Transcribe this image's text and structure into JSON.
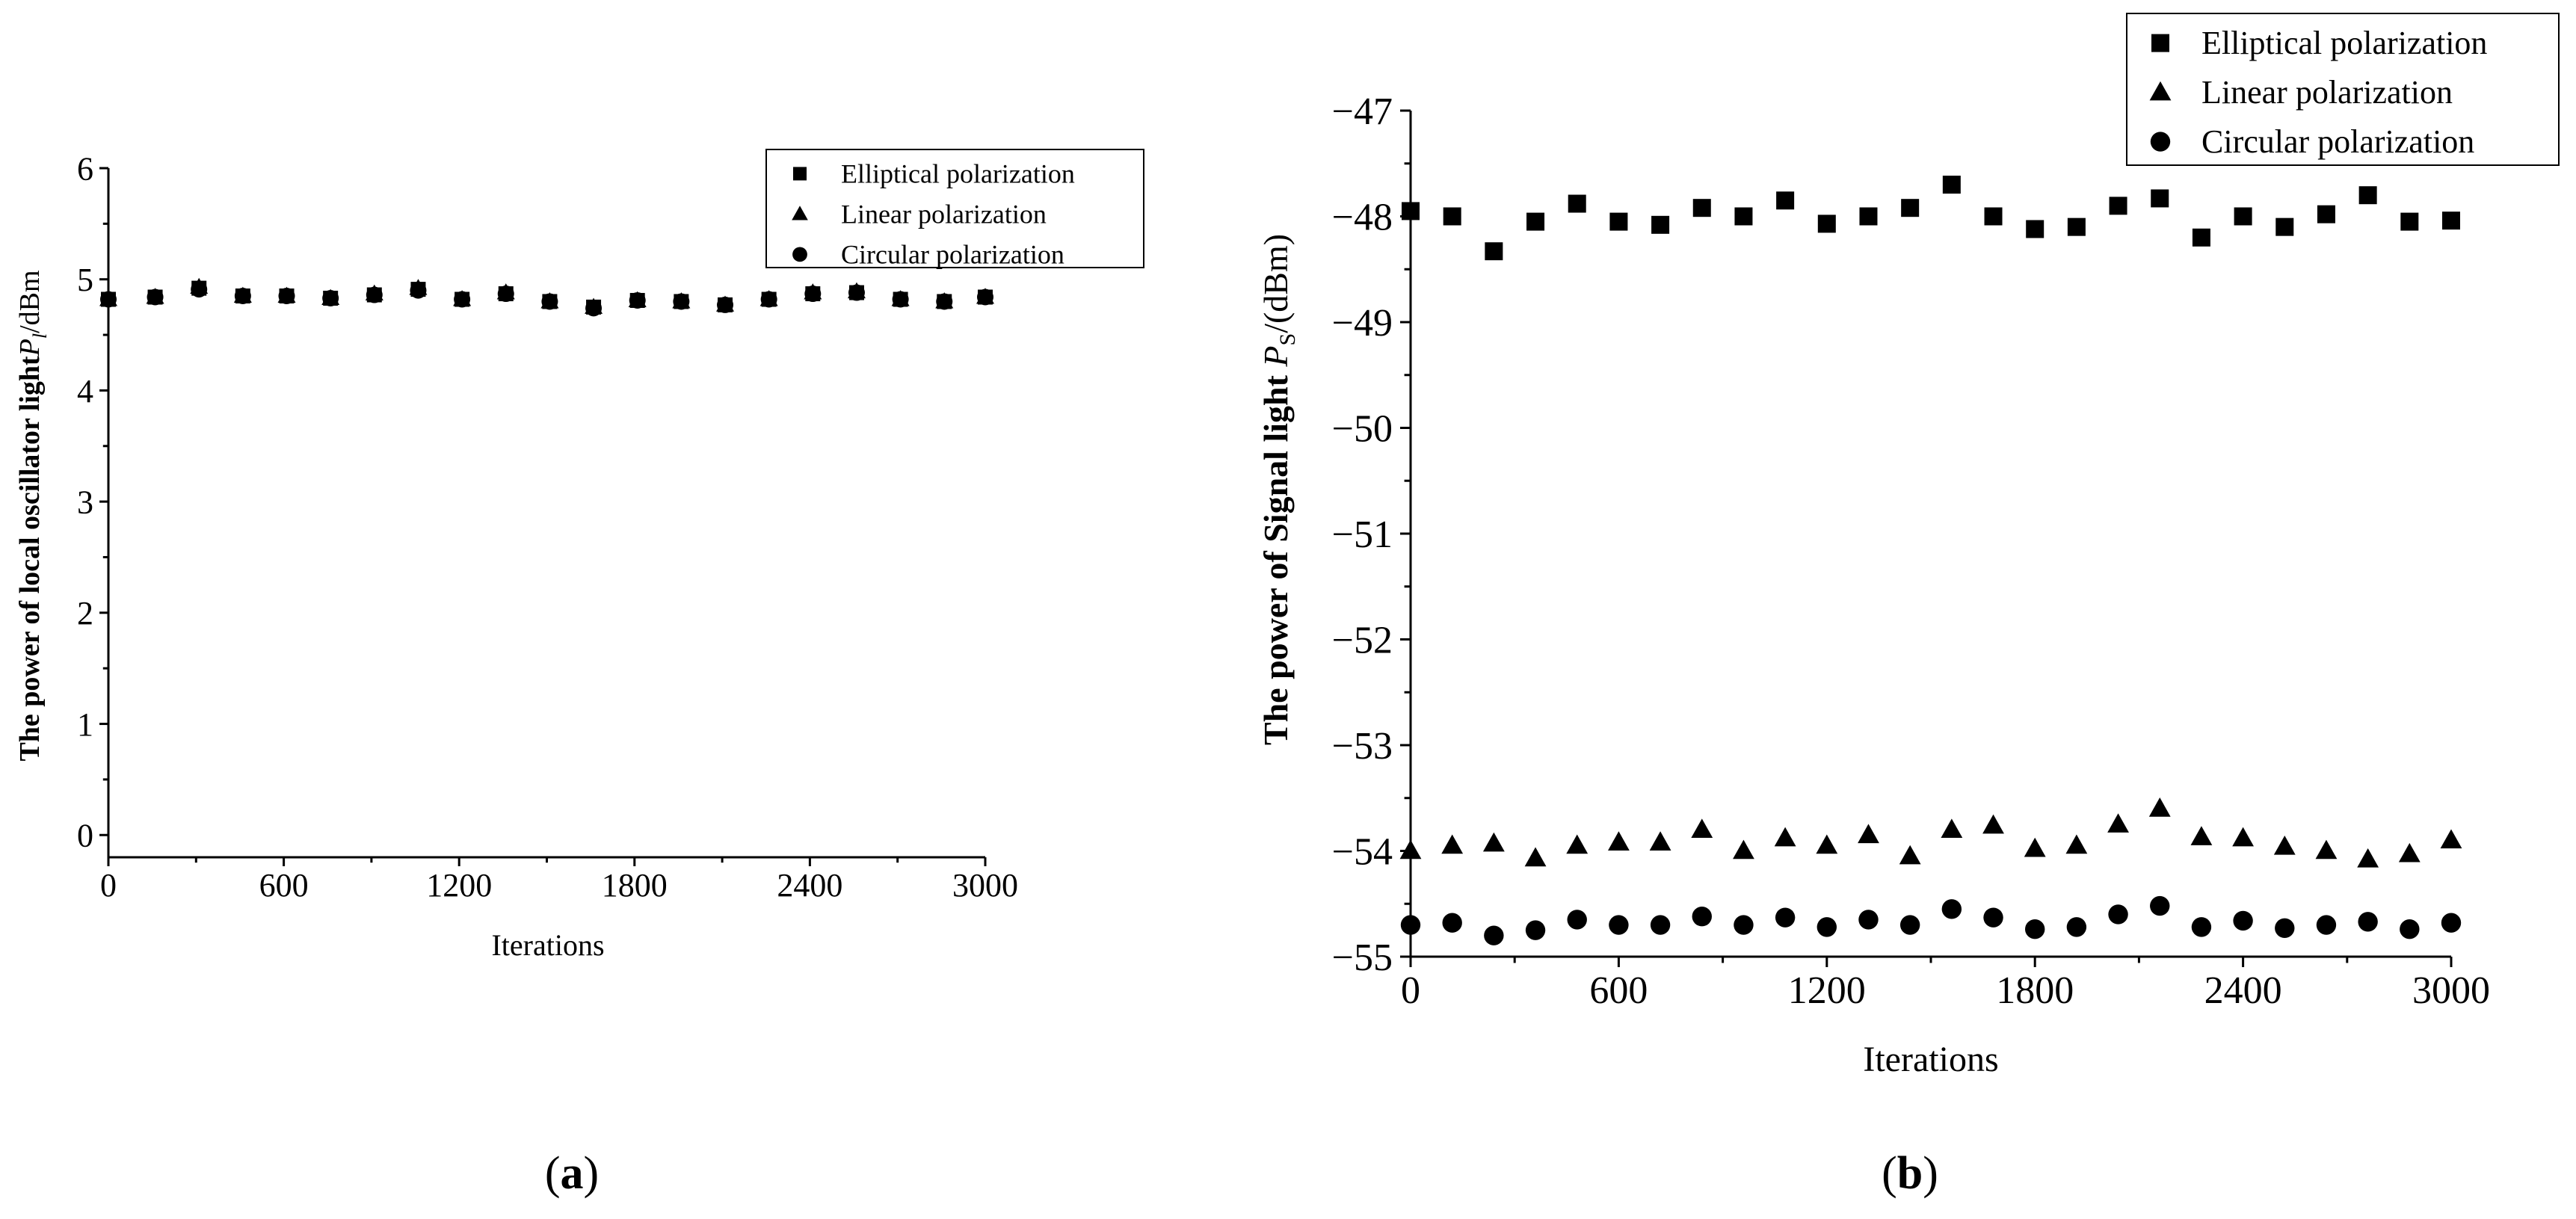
{
  "chart_data": [
    {
      "type": "scatter",
      "panel_label": "a",
      "xlabel": "Iterations",
      "ylabel_prefix": "The power of  local oscillator light",
      "ylabel_symbol": "P",
      "ylabel_subscript": "l",
      "ylabel_unit": "/dBm",
      "xlim": [
        0,
        3000
      ],
      "ylim": [
        -0.2,
        6
      ],
      "xticks": [
        0,
        600,
        1200,
        1800,
        2400,
        3000
      ],
      "yticks": [
        0,
        1,
        2,
        3,
        4,
        5,
        6
      ],
      "x": [
        0,
        160,
        310,
        460,
        610,
        760,
        910,
        1060,
        1210,
        1360,
        1510,
        1660,
        1810,
        1960,
        2110,
        2260,
        2410,
        2560,
        2710,
        2860,
        3000
      ],
      "series": [
        {
          "name": "Elliptical polarization",
          "marker": "square",
          "values": [
            4.82,
            4.84,
            4.92,
            4.85,
            4.85,
            4.83,
            4.86,
            4.91,
            4.82,
            4.87,
            4.8,
            4.75,
            4.81,
            4.8,
            4.77,
            4.82,
            4.87,
            4.88,
            4.82,
            4.8,
            4.84
          ]
        },
        {
          "name": "Linear polarization",
          "marker": "triangle",
          "values": [
            4.82,
            4.84,
            4.93,
            4.85,
            4.85,
            4.83,
            4.87,
            4.92,
            4.82,
            4.88,
            4.8,
            4.75,
            4.81,
            4.8,
            4.77,
            4.82,
            4.88,
            4.89,
            4.82,
            4.8,
            4.84
          ]
        },
        {
          "name": "Circular polarization",
          "marker": "circle",
          "values": [
            4.82,
            4.84,
            4.91,
            4.85,
            4.85,
            4.83,
            4.86,
            4.9,
            4.82,
            4.87,
            4.8,
            4.74,
            4.81,
            4.8,
            4.77,
            4.82,
            4.87,
            4.88,
            4.82,
            4.8,
            4.84
          ]
        }
      ],
      "legend_position": "top-right"
    },
    {
      "type": "scatter",
      "panel_label": "b",
      "xlabel": "Iterations",
      "ylabel_prefix": "The power of Signal light ",
      "ylabel_symbol": "P",
      "ylabel_subscript": "S",
      "ylabel_unit": "/(dBm)",
      "xlim": [
        0,
        3000
      ],
      "ylim": [
        -55,
        -47
      ],
      "xticks": [
        0,
        600,
        1200,
        1800,
        2400,
        3000
      ],
      "yticks": [
        -47,
        -48,
        -49,
        -50,
        -51,
        -52,
        -53,
        -54,
        -55
      ],
      "ytick_labels": [
        "−47",
        "−48",
        "−49",
        "−50",
        "−51",
        "−52",
        "−53",
        "−54",
        "−55"
      ],
      "x": [
        0,
        120,
        240,
        360,
        480,
        600,
        720,
        840,
        960,
        1080,
        1200,
        1320,
        1440,
        1560,
        1680,
        1800,
        1920,
        2040,
        2160,
        2280,
        2400,
        2520,
        2640,
        2760,
        2880,
        3000
      ],
      "series": [
        {
          "name": "Elliptical polarization",
          "marker": "square",
          "values": [
            -47.95,
            -48.0,
            -48.33,
            -48.05,
            -47.88,
            -48.05,
            -48.08,
            -47.92,
            -48.0,
            -47.85,
            -48.07,
            -48.0,
            -47.92,
            -47.7,
            -48.0,
            -48.12,
            -48.1,
            -47.9,
            -47.83,
            -48.2,
            -48.0,
            -48.1,
            -47.98,
            -47.8,
            -48.05,
            -48.04
          ]
        },
        {
          "name": "Linear polarization",
          "marker": "triangle",
          "values": [
            -54.0,
            -53.95,
            -53.93,
            -54.07,
            -53.95,
            -53.92,
            -53.92,
            -53.8,
            -54.0,
            -53.88,
            -53.95,
            -53.85,
            -54.05,
            -53.8,
            -53.76,
            -53.98,
            -53.95,
            -53.75,
            -53.6,
            -53.87,
            -53.88,
            -53.96,
            -54.0,
            -54.08,
            -54.03,
            -53.9
          ]
        },
        {
          "name": "Circular polarization",
          "marker": "circle",
          "values": [
            -54.7,
            -54.68,
            -54.8,
            -54.75,
            -54.65,
            -54.7,
            -54.7,
            -54.62,
            -54.7,
            -54.63,
            -54.72,
            -54.65,
            -54.7,
            -54.55,
            -54.63,
            -54.74,
            -54.72,
            -54.6,
            -54.52,
            -54.72,
            -54.66,
            -54.73,
            -54.7,
            -54.67,
            -54.74,
            -54.68
          ]
        }
      ],
      "legend_position": "top-right"
    }
  ]
}
